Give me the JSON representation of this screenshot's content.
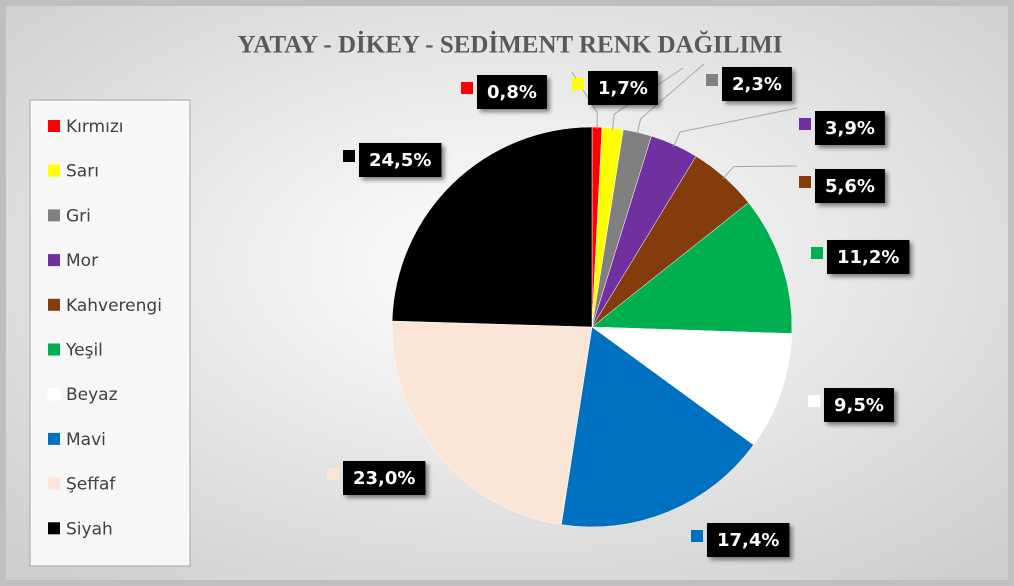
{
  "chart_data": {
    "type": "pie",
    "title": "YATAY - DİKEY - SEDİMENT RENK DAĞILIMI",
    "categories": [
      "Kırmızı",
      "Sarı",
      "Gri",
      "Mor",
      "Kahverengi",
      "Yeşil",
      "Beyaz",
      "Mavi",
      "Şeffaf",
      "Siyah"
    ],
    "values": [
      0.8,
      1.7,
      2.3,
      3.9,
      5.6,
      11.2,
      9.5,
      17.4,
      23.0,
      24.5
    ],
    "value_labels": [
      "0,8%",
      "1,7%",
      "2,3%",
      "3,9%",
      "5,6%",
      "11,2%",
      "9,5%",
      "17,4%",
      "23,0%",
      "24,5%"
    ],
    "colors": [
      "#ff0000",
      "#ffff00",
      "#808080",
      "#7030a0",
      "#843c0c",
      "#00b050",
      "#ffffff",
      "#0070c0",
      "#fbe5d6",
      "#000000"
    ],
    "legend": "left"
  }
}
